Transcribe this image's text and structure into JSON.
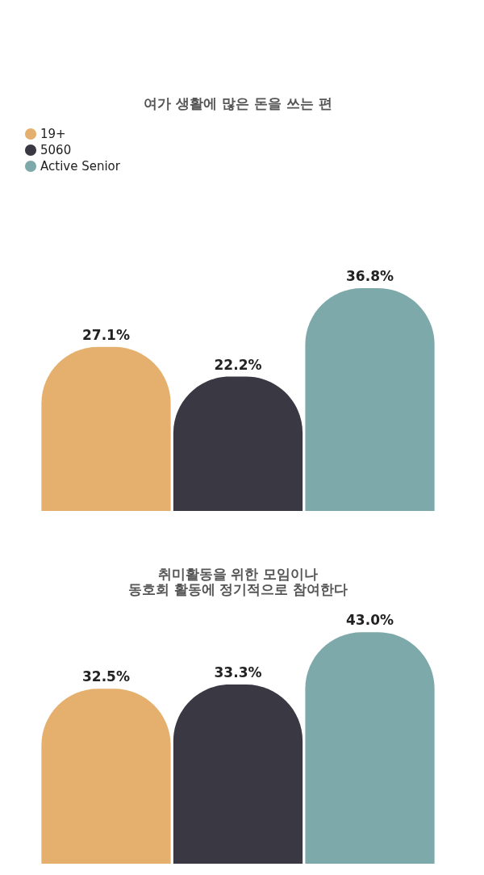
{
  "chart_data": [
    {
      "type": "bar",
      "title": "여가 생활에 많은 돈을 쓰는 편",
      "categories": [
        null
      ],
      "legend": "top left",
      "series": [
        {
          "name": "19+",
          "color": "#e5b06e",
          "values": [
            27.1
          ],
          "value_labels": [
            "27.1%"
          ]
        },
        {
          "name": "5060",
          "color": "#3a3843",
          "values": [
            22.2
          ],
          "value_labels": [
            "22.2%"
          ]
        },
        {
          "name": "Active Senior",
          "color": "#7ea9ab",
          "values": [
            36.8
          ],
          "value_labels": [
            "36.8%"
          ]
        }
      ]
    },
    {
      "type": "bar",
      "title": "취미활동을 위한 모임이나\n동호회 활동에 정기적으로 참여한다",
      "categories": [
        null
      ],
      "legend": false,
      "series": [
        {
          "color": "#e5b06e",
          "values": [
            32.5
          ],
          "value_labels": [
            "32.5%"
          ]
        },
        {
          "color": "#3a3843",
          "values": [
            33.3
          ],
          "value_labels": [
            "33.3%"
          ]
        },
        {
          "color": "#7ea9ab",
          "values": [
            43.0
          ],
          "value_labels": [
            "43.0%"
          ]
        }
      ]
    }
  ]
}
